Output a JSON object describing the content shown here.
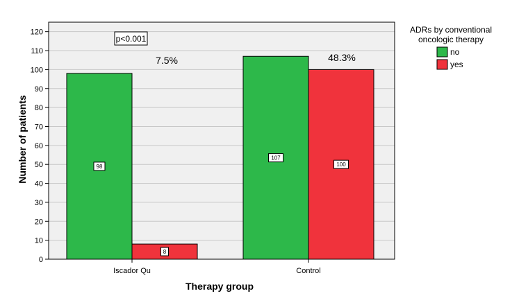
{
  "chart_data": {
    "type": "bar",
    "xlabel": "Therapy group",
    "ylabel": "Number of patients",
    "ylim": [
      0,
      125
    ],
    "yticks": [
      0,
      10,
      20,
      30,
      40,
      50,
      60,
      70,
      80,
      90,
      100,
      110,
      120
    ],
    "categories": [
      "Iscador Qu",
      "Control"
    ],
    "series": [
      {
        "name": "no",
        "color": "#2db84a",
        "values": [
          98,
          107
        ],
        "labels": [
          "98",
          "107"
        ]
      },
      {
        "name": "yes",
        "color": "#f0333c",
        "values": [
          8,
          100
        ],
        "labels": [
          "8",
          "100"
        ]
      }
    ],
    "legend": {
      "title_line1": "ADRs by conventional",
      "title_line2": "oncologic therapy",
      "placement": "top-right"
    },
    "annotations": {
      "pvalue": "p<0.001",
      "percentages": [
        "7.5%",
        "48.3%"
      ]
    },
    "grid": true,
    "plot_background": "#f0f0f0"
  }
}
